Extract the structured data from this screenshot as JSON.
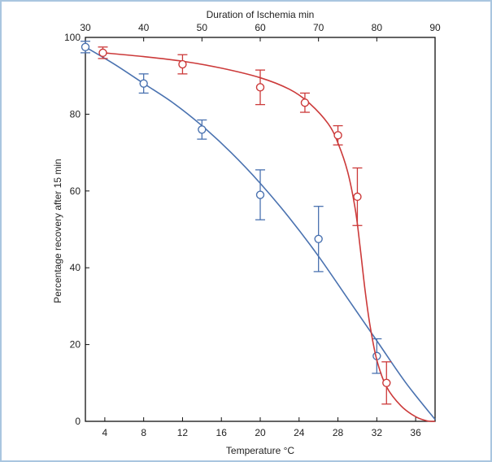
{
  "chart_data": {
    "type": "line",
    "title": "",
    "ylabel": "Percentage recovery after 15 min",
    "ylim": [
      0,
      100
    ],
    "yticks": [
      0,
      20,
      40,
      60,
      80,
      100
    ],
    "x_bottom": {
      "label": "Temperature °C",
      "lim": [
        2,
        38
      ],
      "ticks": [
        4,
        8,
        12,
        16,
        20,
        24,
        28,
        32,
        36
      ]
    },
    "x_top": {
      "label": "Duration of Ischemia min",
      "lim": [
        30,
        90
      ],
      "ticks": [
        30,
        40,
        50,
        60,
        70,
        80,
        90
      ]
    },
    "grid": false,
    "series": [
      {
        "name": "Duration of ischemia",
        "axis": "top",
        "color": "#4a72b0",
        "x": [
          30,
          40,
          50,
          60,
          70,
          80
        ],
        "y": [
          97.5,
          88,
          76,
          59,
          47.5,
          17
        ],
        "err": [
          1.5,
          2.5,
          2.5,
          6.5,
          8.5,
          4.5
        ],
        "fit_x": [
          30,
          35,
          40,
          45,
          50,
          55,
          60,
          65,
          70,
          75,
          80,
          85,
          90
        ],
        "fit_y": [
          97.5,
          93,
          88,
          83,
          77,
          70,
          62,
          53,
          43,
          32,
          21,
          10,
          0.5
        ]
      },
      {
        "name": "Temperature",
        "axis": "bottom",
        "color": "#cc3a3a",
        "x": [
          3.8,
          12,
          20,
          24.6,
          28,
          30,
          33
        ],
        "y": [
          96,
          93,
          87,
          83,
          74.5,
          58.5,
          10
        ],
        "err": [
          1.5,
          2.5,
          4.5,
          2.5,
          2.5,
          7.5,
          5.5
        ],
        "fit_x": [
          3.8,
          8,
          12,
          16,
          20,
          23,
          25,
          27,
          28,
          29,
          29.8,
          30.3,
          30.8,
          31.3,
          32,
          33,
          34.5,
          36,
          37.2,
          38
        ],
        "fit_y": [
          96,
          95,
          93.8,
          92,
          89.5,
          86.5,
          83,
          77.5,
          72.5,
          65,
          55,
          45,
          34,
          25,
          16,
          9,
          4,
          1.2,
          0.1,
          0
        ]
      }
    ]
  }
}
